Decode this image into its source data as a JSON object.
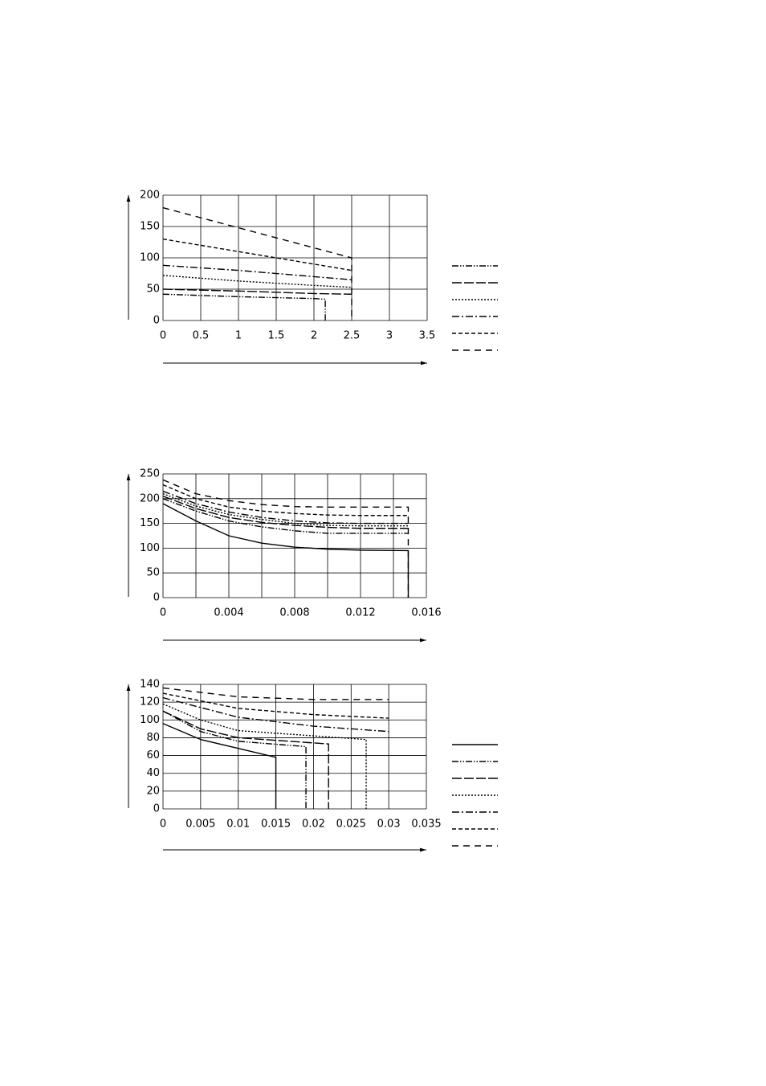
{
  "chart_data": [
    {
      "type": "line",
      "xlim": [
        0,
        3.5
      ],
      "xticks": [
        0,
        0.5,
        1,
        1.5,
        2,
        2.5,
        3,
        3.5
      ],
      "ylim": [
        0,
        200
      ],
      "yticks": [
        0,
        50,
        100,
        150,
        200
      ],
      "grid": true,
      "legend": true,
      "series": [
        {
          "color": "#000000",
          "dash": "dash-dot-dot",
          "x": [
            0,
            1,
            2,
            2.15,
            2.15
          ],
          "values": [
            42,
            38,
            35,
            34,
            0
          ]
        },
        {
          "color": "#000000",
          "dash": "long-dash",
          "x": [
            0,
            1,
            2,
            2.5
          ],
          "values": [
            50,
            47,
            43,
            42
          ]
        },
        {
          "color": "#000000",
          "dash": "dotted",
          "x": [
            0,
            1,
            2,
            2.5
          ],
          "values": [
            72,
            63,
            56,
            53
          ]
        },
        {
          "color": "#000000",
          "dash": "dash-dot",
          "x": [
            0,
            1,
            2,
            2.5
          ],
          "values": [
            88,
            80,
            70,
            65
          ]
        },
        {
          "color": "#000000",
          "dash": "short-dash",
          "x": [
            0,
            1,
            2,
            2.5
          ],
          "values": [
            130,
            110,
            90,
            80
          ]
        },
        {
          "color": "#000000",
          "dash": "long-dash-gap",
          "x": [
            0,
            1,
            2,
            2.5,
            2.5
          ],
          "values": [
            180,
            148,
            116,
            100,
            0
          ]
        }
      ]
    },
    {
      "type": "line",
      "xlim": [
        0,
        0.016
      ],
      "xticks": [
        0,
        0.004,
        0.008,
        0.012,
        0.016
      ],
      "xminor": [
        0.002,
        0.006,
        0.01,
        0.014
      ],
      "ylim": [
        0,
        250
      ],
      "yticks": [
        0,
        50,
        100,
        150,
        200,
        250
      ],
      "grid": true,
      "legend": false,
      "series": [
        {
          "color": "#000000",
          "dash": "solid",
          "x": [
            0,
            0.002,
            0.004,
            0.006,
            0.008,
            0.01,
            0.012,
            0.0149,
            0.0149
          ],
          "values": [
            190,
            155,
            125,
            110,
            102,
            98,
            96,
            95,
            0
          ]
        },
        {
          "color": "#000000",
          "dash": "dash-dot-dot",
          "x": [
            0,
            0.002,
            0.004,
            0.006,
            0.008,
            0.01,
            0.012,
            0.0149
          ],
          "values": [
            200,
            175,
            155,
            143,
            135,
            130,
            130,
            130
          ]
        },
        {
          "color": "#000000",
          "dash": "long-dash",
          "x": [
            0,
            0.002,
            0.004,
            0.006,
            0.008,
            0.01,
            0.012,
            0.0149
          ],
          "values": [
            205,
            180,
            162,
            152,
            146,
            142,
            140,
            140
          ]
        },
        {
          "color": "#000000",
          "dash": "dotted",
          "x": [
            0,
            0.002,
            0.004,
            0.006,
            0.008,
            0.01,
            0.012,
            0.0149
          ],
          "values": [
            210,
            185,
            168,
            158,
            150,
            146,
            145,
            145
          ]
        },
        {
          "color": "#000000",
          "dash": "dash-dot",
          "x": [
            0,
            0.002,
            0.004,
            0.006,
            0.008,
            0.01,
            0.012,
            0.0149
          ],
          "values": [
            215,
            190,
            173,
            162,
            155,
            151,
            150,
            150
          ]
        },
        {
          "color": "#000000",
          "dash": "short-dash",
          "x": [
            0,
            0.002,
            0.004,
            0.006,
            0.008,
            0.01,
            0.012,
            0.0149
          ],
          "values": [
            228,
            200,
            183,
            175,
            170,
            167,
            166,
            166
          ]
        },
        {
          "color": "#000000",
          "dash": "long-dash-gap",
          "x": [
            0,
            0.002,
            0.004,
            0.006,
            0.008,
            0.01,
            0.012,
            0.0149,
            0.0149
          ],
          "values": [
            238,
            210,
            196,
            188,
            184,
            183,
            183,
            183,
            0
          ]
        }
      ]
    },
    {
      "type": "line",
      "xlim": [
        0,
        0.035
      ],
      "xticks": [
        0,
        0.005,
        0.01,
        0.015,
        0.02,
        0.025,
        0.03,
        0.035
      ],
      "ylim": [
        0,
        140
      ],
      "yticks": [
        0,
        20,
        40,
        60,
        80,
        100,
        120,
        140
      ],
      "grid": true,
      "legend": true,
      "series": [
        {
          "color": "#000000",
          "dash": "solid",
          "x": [
            0,
            0.005,
            0.01,
            0.015,
            0.015
          ],
          "values": [
            96,
            78,
            68,
            58,
            0
          ]
        },
        {
          "color": "#000000",
          "dash": "dash-dot-dot",
          "x": [
            0,
            0.005,
            0.01,
            0.019,
            0.019
          ],
          "values": [
            110,
            87,
            76,
            70,
            0
          ]
        },
        {
          "color": "#000000",
          "dash": "long-dash",
          "x": [
            0,
            0.005,
            0.01,
            0.022,
            0.022
          ],
          "values": [
            110,
            90,
            80,
            73,
            0
          ]
        },
        {
          "color": "#000000",
          "dash": "dotted",
          "x": [
            0,
            0.005,
            0.01,
            0.027,
            0.027
          ],
          "values": [
            118,
            100,
            88,
            78,
            0
          ]
        },
        {
          "color": "#000000",
          "dash": "dash-dot",
          "x": [
            0,
            0.01,
            0.02,
            0.03
          ],
          "values": [
            125,
            103,
            93,
            87
          ]
        },
        {
          "color": "#000000",
          "dash": "short-dash",
          "x": [
            0,
            0.01,
            0.02,
            0.03
          ],
          "values": [
            130,
            113,
            106,
            102
          ]
        },
        {
          "color": "#000000",
          "dash": "long-dash-gap",
          "x": [
            0,
            0.01,
            0.02,
            0.03
          ],
          "values": [
            136,
            126,
            123,
            123
          ]
        }
      ]
    }
  ]
}
